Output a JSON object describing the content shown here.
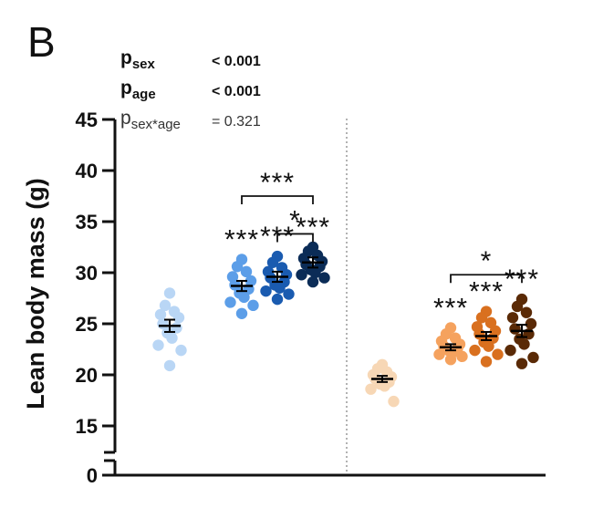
{
  "panel_label": "B",
  "stats": [
    {
      "p": "p",
      "sub": "sex",
      "value": "< 0.001",
      "bold": true
    },
    {
      "p": "p",
      "sub": "age",
      "value": "< 0.001",
      "bold": true
    },
    {
      "p": "p",
      "sub": "sex*age",
      "value": "= 0.321",
      "bold": false
    }
  ],
  "chart_data": {
    "type": "scatter",
    "title": "",
    "xlabel": "",
    "ylabel": "Lean body mass (g)",
    "ylim": [
      15,
      45
    ],
    "axis_break": {
      "lower": 0,
      "upper": 15
    },
    "yticks": [
      0,
      15,
      20,
      25,
      30,
      35,
      40,
      45
    ],
    "grid": false,
    "legend": "none",
    "groups": [
      {
        "color": "#b9d6f5",
        "mean": 24.8,
        "sem": 0.6,
        "points": [
          28.0,
          26.8,
          26.2,
          25.9,
          25.6,
          25.0,
          24.6,
          24.1,
          23.6,
          22.9,
          22.4,
          20.9
        ]
      },
      {
        "color": "#5c9ee8",
        "mean": 28.7,
        "sem": 0.5,
        "points": [
          31.3,
          30.6,
          30.1,
          29.6,
          29.2,
          28.8,
          28.4,
          28.0,
          27.6,
          27.1,
          26.8,
          26.0
        ]
      },
      {
        "color": "#1a5bb0",
        "mean": 29.6,
        "sem": 0.5,
        "points": [
          31.6,
          31.0,
          30.5,
          30.1,
          29.8,
          29.5,
          29.1,
          28.8,
          28.5,
          28.2,
          27.9,
          27.4
        ]
      },
      {
        "color": "#0b2c57",
        "mean": 31.0,
        "sem": 0.5,
        "points": [
          32.5,
          32.1,
          31.7,
          31.4,
          31.1,
          30.8,
          30.6,
          30.3,
          30.0,
          29.8,
          29.5,
          29.1
        ]
      },
      {
        "color": "#f7d7b5",
        "mean": 19.6,
        "sem": 0.3,
        "points": [
          21.0,
          20.6,
          20.3,
          20.0,
          19.8,
          19.6,
          19.3,
          19.1,
          18.9,
          18.6,
          17.4
        ]
      },
      {
        "color": "#f5a25e",
        "mean": 22.7,
        "sem": 0.3,
        "points": [
          24.6,
          24.0,
          23.6,
          23.3,
          23.0,
          22.8,
          22.6,
          22.4,
          22.2,
          22.0,
          21.8,
          21.5
        ]
      },
      {
        "color": "#d9701f",
        "mean": 23.8,
        "sem": 0.4,
        "points": [
          26.2,
          25.6,
          25.1,
          24.7,
          24.3,
          24.0,
          23.6,
          23.2,
          22.8,
          22.4,
          22.0,
          21.3
        ]
      },
      {
        "color": "#5a2a06",
        "mean": 24.3,
        "sem": 0.6,
        "points": [
          27.4,
          26.7,
          26.1,
          25.6,
          25.0,
          24.5,
          24.0,
          23.5,
          23.0,
          22.4,
          21.7,
          21.1
        ]
      }
    ],
    "significance": [
      {
        "group": 1,
        "label": "***"
      },
      {
        "group": 2,
        "label": "***"
      },
      {
        "group": 3,
        "label": "***"
      },
      {
        "group": 5,
        "label": "***"
      },
      {
        "group": 6,
        "label": "***"
      },
      {
        "group": 7,
        "label": "***"
      }
    ],
    "brackets": [
      {
        "from": 1,
        "to": 3,
        "label": "***"
      },
      {
        "from": 2,
        "to": 3,
        "label": "*"
      },
      {
        "from": 5,
        "to": 7,
        "label": "*"
      }
    ]
  }
}
